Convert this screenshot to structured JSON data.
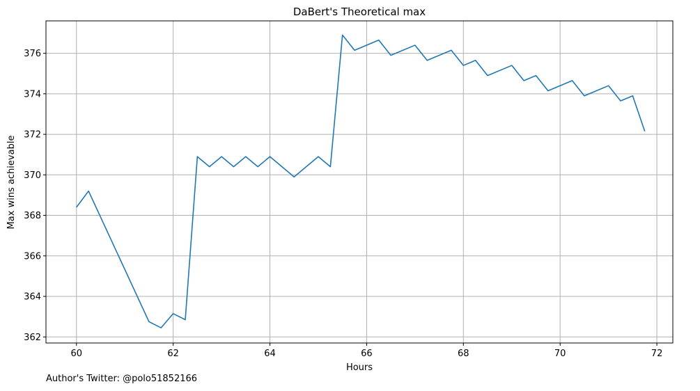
{
  "footer": {
    "credit": "Author's Twitter: @polo51852166"
  },
  "chart_data": {
    "type": "line",
    "title": "DaBert's Theoretical max",
    "xlabel": "Hours",
    "ylabel": "Max wins achievable",
    "xlim": [
      59.37,
      72.33
    ],
    "ylim": [
      361.7,
      377.6
    ],
    "xticks": [
      60,
      62,
      64,
      66,
      68,
      70,
      72
    ],
    "yticks": [
      362,
      364,
      366,
      368,
      370,
      372,
      374,
      376
    ],
    "grid": true,
    "line_color": "#1f77b4",
    "series": [
      {
        "x": [
          60,
          60.25,
          61.5,
          61.75,
          62,
          62.25,
          62.5,
          62.75,
          63,
          63.25,
          63.5,
          63.75,
          64,
          64.5,
          65,
          65.25,
          65.5,
          65.75,
          66.25,
          66.5,
          67,
          67.25,
          67.75,
          68,
          68.25,
          68.5,
          69,
          69.25,
          69.5,
          69.75,
          70.25,
          70.5,
          71,
          71.25,
          71.5,
          71.75
        ],
        "y": [
          368.4,
          369.2,
          362.75,
          362.45,
          363.15,
          362.85,
          370.9,
          370.4,
          370.9,
          370.4,
          370.9,
          370.4,
          370.9,
          369.9,
          370.9,
          370.4,
          376.9,
          376.15,
          376.65,
          375.9,
          376.4,
          375.65,
          376.15,
          375.4,
          375.65,
          374.9,
          375.4,
          374.65,
          374.9,
          374.15,
          374.65,
          373.9,
          374.4,
          373.65,
          373.9,
          372.15
        ]
      }
    ]
  }
}
